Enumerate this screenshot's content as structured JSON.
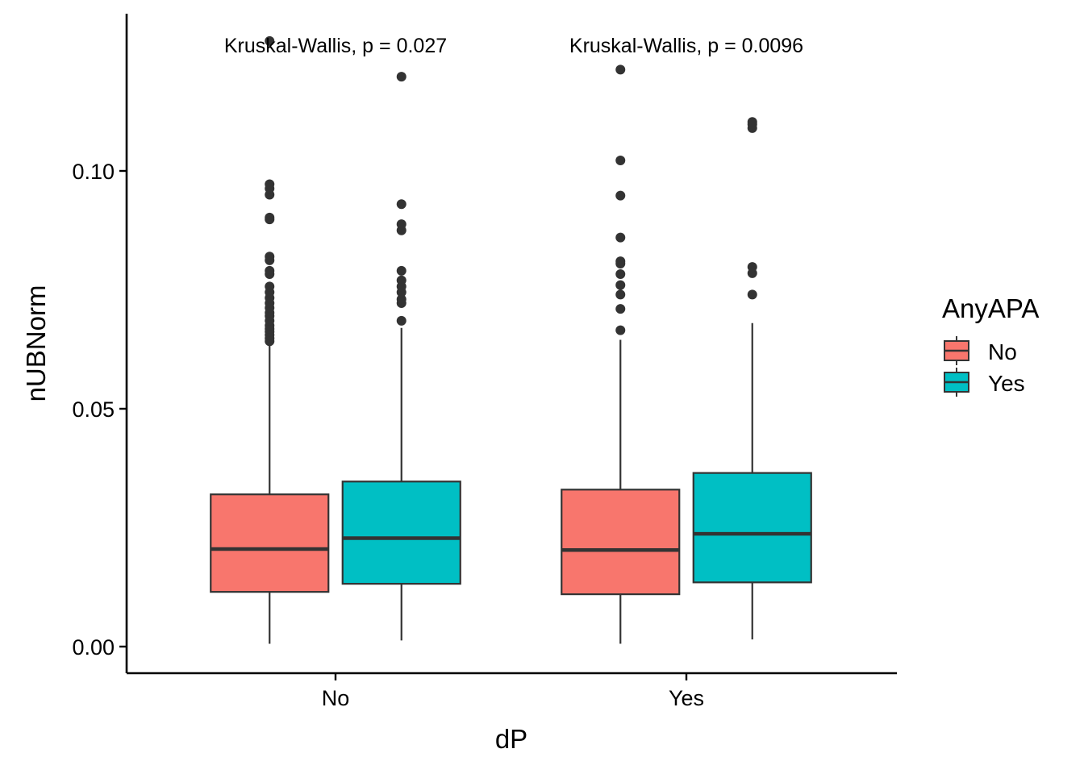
{
  "chart_data": {
    "type": "boxplot",
    "xlabel": "dP",
    "ylabel": "nUBNorm",
    "categories": [
      "No",
      "Yes"
    ],
    "ylim": [
      -0.0055,
      0.1335
    ],
    "y_ticks": [
      0.0,
      0.05,
      0.1
    ],
    "y_tick_labels": [
      "0.00",
      "0.05",
      "0.10"
    ],
    "grid": false,
    "legend": {
      "title": "AnyAPA",
      "position": "right",
      "entries": [
        {
          "name": "No",
          "color": "#F8766D"
        },
        {
          "name": "Yes",
          "color": "#00BFC4"
        }
      ]
    },
    "annotations": [
      {
        "category": "No",
        "text": "Kruskal-Wallis, p = 0.027"
      },
      {
        "category": "Yes",
        "text": "Kruskal-Wallis, p = 0.0096"
      }
    ],
    "series": [
      {
        "name": "No",
        "color": "#F8766D",
        "boxes": [
          {
            "category": "No",
            "min": 0.0006,
            "q1": 0.0115,
            "median": 0.0205,
            "q3": 0.032,
            "max": 0.0635,
            "outliers": [
              0.0642,
              0.0648,
              0.0655,
              0.0662,
              0.0668,
              0.0675,
              0.0685,
              0.0695,
              0.0702,
              0.0712,
              0.0722,
              0.0733,
              0.0745,
              0.0757,
              0.0783,
              0.079,
              0.0812,
              0.082,
              0.0898,
              0.0902,
              0.095,
              0.0963,
              0.0972,
              0.1273
            ]
          },
          {
            "category": "Yes",
            "min": 0.0006,
            "q1": 0.011,
            "median": 0.0203,
            "q3": 0.033,
            "max": 0.0645,
            "outliers": [
              0.0665,
              0.071,
              0.074,
              0.076,
              0.0783,
              0.0805,
              0.081,
              0.086,
              0.0948,
              0.1022,
              0.1213
            ]
          }
        ]
      },
      {
        "name": "Yes",
        "color": "#00BFC4",
        "boxes": [
          {
            "category": "No",
            "min": 0.0013,
            "q1": 0.0132,
            "median": 0.0228,
            "q3": 0.0347,
            "max": 0.067,
            "outliers": [
              0.0685,
              0.0722,
              0.073,
              0.0745,
              0.0757,
              0.077,
              0.079,
              0.0875,
              0.0888,
              0.093,
              0.1198
            ]
          },
          {
            "category": "Yes",
            "min": 0.0015,
            "q1": 0.0135,
            "median": 0.0237,
            "q3": 0.0365,
            "max": 0.068,
            "outliers": [
              0.074,
              0.0785,
              0.0798,
              0.109,
              0.1098,
              0.1103
            ]
          }
        ]
      }
    ]
  }
}
